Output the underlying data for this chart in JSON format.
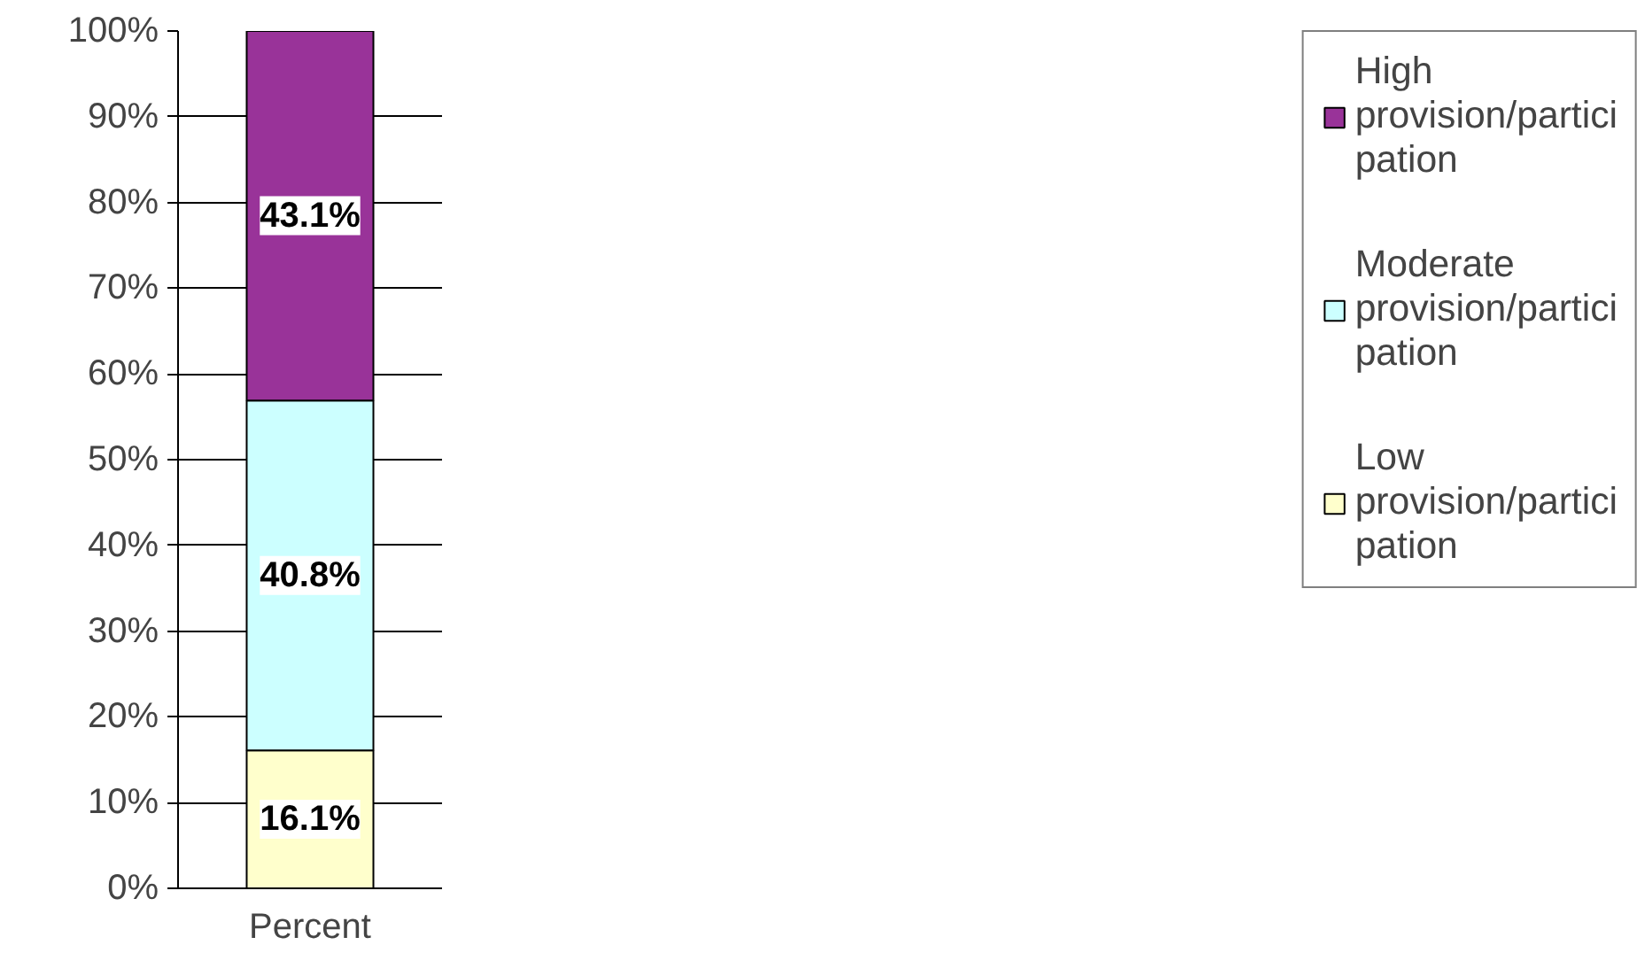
{
  "chart_data": {
    "type": "bar",
    "stacked": true,
    "categories": [
      "Percent"
    ],
    "series": [
      {
        "name": "Low provision/participation",
        "color": "#ffffcc",
        "values": [
          16.1
        ],
        "value_labels": [
          "16.1%"
        ]
      },
      {
        "name": "Moderate provision/participation",
        "color": "#ccffff",
        "values": [
          40.8
        ],
        "value_labels": [
          "40.8%"
        ]
      },
      {
        "name": "High provision/participation",
        "color": "#993399",
        "values": [
          43.1
        ],
        "value_labels": [
          "43.1%"
        ]
      }
    ],
    "ylim": [
      0,
      100
    ],
    "yticks": [
      {
        "value": 0,
        "label": "0%"
      },
      {
        "value": 10,
        "label": "10%"
      },
      {
        "value": 20,
        "label": "20%"
      },
      {
        "value": 30,
        "label": "30%"
      },
      {
        "value": 40,
        "label": "40%"
      },
      {
        "value": 50,
        "label": "50%"
      },
      {
        "value": 60,
        "label": "60%"
      },
      {
        "value": 70,
        "label": "70%"
      },
      {
        "value": 80,
        "label": "80%"
      },
      {
        "value": 90,
        "label": "90%"
      },
      {
        "value": 100,
        "label": "100%"
      }
    ],
    "grid": "y",
    "legend": "right"
  }
}
